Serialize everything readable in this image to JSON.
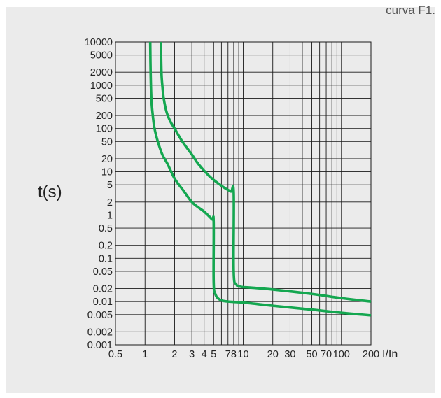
{
  "corner_label": "curva F1.",
  "colors": {
    "background": "#ebebeb",
    "grid": "#1a1a1a",
    "curve": "#14a750"
  },
  "chart_data": {
    "type": "line",
    "title": "",
    "xlabel": "I/In",
    "ylabel": "t(s)",
    "x_scale": "log",
    "y_scale": "log",
    "xlim": [
      0.5,
      200
    ],
    "ylim": [
      0.001,
      10000
    ],
    "grid": true,
    "legend": "none",
    "x_ticks": [
      0.5,
      1,
      2,
      3,
      4,
      5,
      7,
      8,
      10,
      20,
      30,
      50,
      70,
      100,
      200
    ],
    "x_tick_labels": [
      "0.5",
      "1",
      "2",
      "3",
      "4",
      "5",
      "7",
      "8",
      "10",
      "20",
      "30",
      "50",
      "70",
      "100",
      "200"
    ],
    "x_gridlines": [
      0.5,
      1,
      2,
      3,
      4,
      5,
      6,
      7,
      8,
      9,
      10,
      20,
      30,
      40,
      50,
      60,
      70,
      80,
      90,
      100,
      200
    ],
    "y_ticks": [
      0.001,
      0.002,
      0.005,
      0.01,
      0.02,
      0.05,
      0.1,
      0.2,
      0.5,
      1,
      2,
      5,
      10,
      20,
      50,
      100,
      200,
      500,
      1000,
      2000,
      5000,
      10000
    ],
    "y_tick_labels": [
      "0.001",
      "0.002",
      "0.005",
      "0.01",
      "0.02",
      "0.05",
      "0.1",
      "0.2",
      "0.5",
      "1",
      "2",
      "5",
      "10",
      "20",
      "50",
      "100",
      "200",
      "500",
      "1000",
      "2000",
      "5000",
      "10000"
    ],
    "series": [
      {
        "points": [
          [
            1.13,
            10000
          ],
          [
            1.14,
            2000
          ],
          [
            1.16,
            500
          ],
          [
            1.2,
            200
          ],
          [
            1.25,
            100
          ],
          [
            1.35,
            50
          ],
          [
            1.5,
            25
          ],
          [
            1.7,
            15
          ],
          [
            2.0,
            7
          ],
          [
            2.5,
            3.5
          ],
          [
            3.0,
            2
          ],
          [
            3.5,
            1.5
          ],
          [
            4.0,
            1.2
          ],
          [
            4.8,
            0.8
          ],
          [
            5.0,
            0.7
          ],
          [
            5.0,
            0.03
          ],
          [
            5.2,
            0.015
          ],
          [
            5.8,
            0.011
          ],
          [
            7.0,
            0.01
          ],
          [
            10,
            0.0095
          ],
          [
            20,
            0.008
          ],
          [
            50,
            0.0065
          ],
          [
            100,
            0.0055
          ],
          [
            200,
            0.0048
          ]
        ]
      },
      {
        "points": [
          [
            1.45,
            10000
          ],
          [
            1.47,
            2000
          ],
          [
            1.5,
            1000
          ],
          [
            1.55,
            500
          ],
          [
            1.65,
            250
          ],
          [
            1.8,
            150
          ],
          [
            2.0,
            100
          ],
          [
            2.4,
            50
          ],
          [
            3.0,
            25
          ],
          [
            3.5,
            15
          ],
          [
            4.5,
            8
          ],
          [
            5.5,
            5.5
          ],
          [
            6.5,
            4.2
          ],
          [
            7.5,
            3.5
          ],
          [
            8.0,
            3.3
          ],
          [
            8.0,
            0.05
          ],
          [
            8.5,
            0.025
          ],
          [
            9.5,
            0.022
          ],
          [
            12,
            0.021
          ],
          [
            20,
            0.019
          ],
          [
            50,
            0.015
          ],
          [
            100,
            0.012
          ],
          [
            200,
            0.01
          ]
        ]
      }
    ]
  }
}
